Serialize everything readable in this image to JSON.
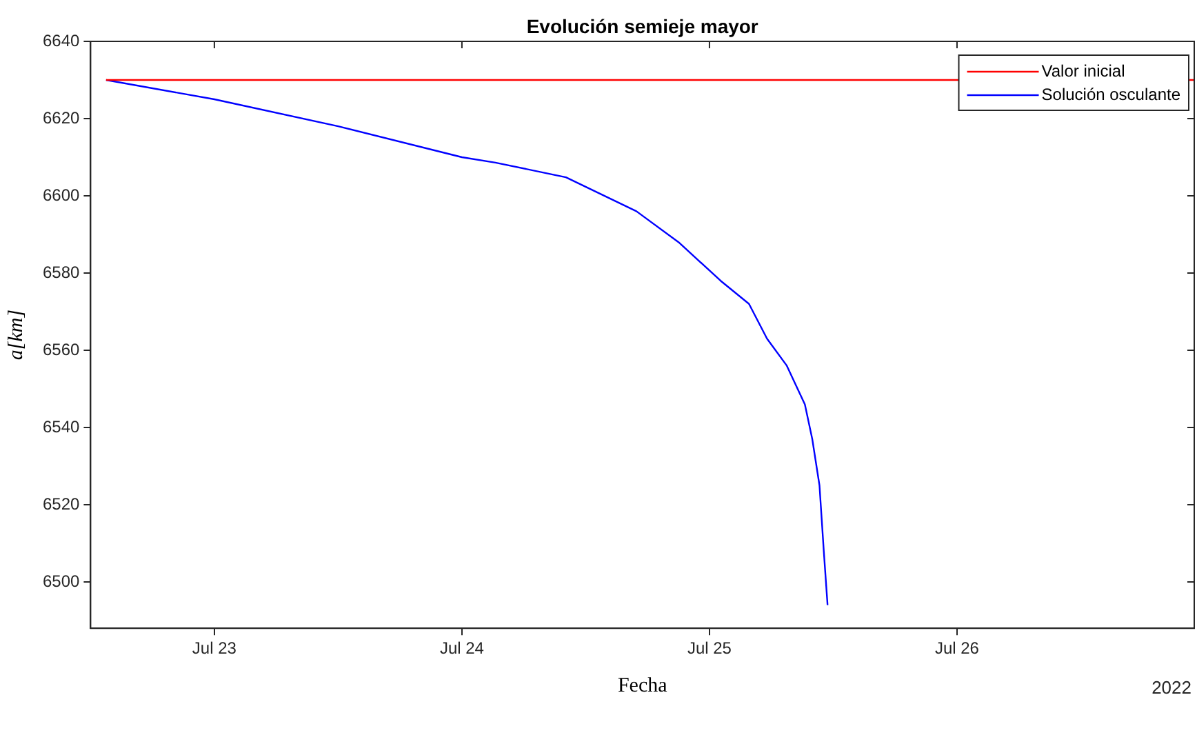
{
  "chart_data": {
    "type": "line",
    "title": "Evolución semieje mayor",
    "xlabel": "Fecha",
    "ylabel": "a[km]",
    "annotations": [
      "2022"
    ],
    "xlim": [
      "2022-07-22T12:00",
      "2022-07-26T23:00"
    ],
    "xticks": [
      {
        "value": "2022-07-23",
        "label": "Jul 23"
      },
      {
        "value": "2022-07-24",
        "label": "Jul 24"
      },
      {
        "value": "2022-07-25",
        "label": "Jul 25"
      },
      {
        "value": "2022-07-26",
        "label": "Jul 26"
      }
    ],
    "ylim": [
      6488,
      6640
    ],
    "yticks": [
      6500,
      6520,
      6540,
      6560,
      6580,
      6600,
      6620,
      6640
    ],
    "grid": false,
    "legend": "top right",
    "marker": "none",
    "line_style": "solid",
    "series": [
      {
        "name": "Valor inicial",
        "color": "#ff0000",
        "x": [
          "2022-07-22T13:30",
          "2022-07-26T23:00"
        ],
        "values": [
          6630,
          6630
        ]
      },
      {
        "name": "Solución osculante",
        "color": "#0000ff",
        "x": [
          "2022-07-22T13:30",
          "2022-07-23T00:00",
          "2022-07-23T12:00",
          "2022-07-24T00:00",
          "2022-07-24T03:15",
          "2022-07-24T10:05",
          "2022-07-24T16:55",
          "2022-07-24T21:00",
          "2022-07-25T01:05",
          "2022-07-25T03:50",
          "2022-07-25T05:35",
          "2022-07-25T07:30",
          "2022-07-25T09:15",
          "2022-07-25T09:58",
          "2022-07-25T10:40",
          "2022-07-25T11:05",
          "2022-07-25T11:27"
        ],
        "values": [
          6630,
          6625,
          6618,
          6610,
          6608.6,
          6604.8,
          6596,
          6588,
          6578,
          6572,
          6563,
          6556,
          6546,
          6537,
          6525,
          6508,
          6494
        ]
      }
    ]
  }
}
